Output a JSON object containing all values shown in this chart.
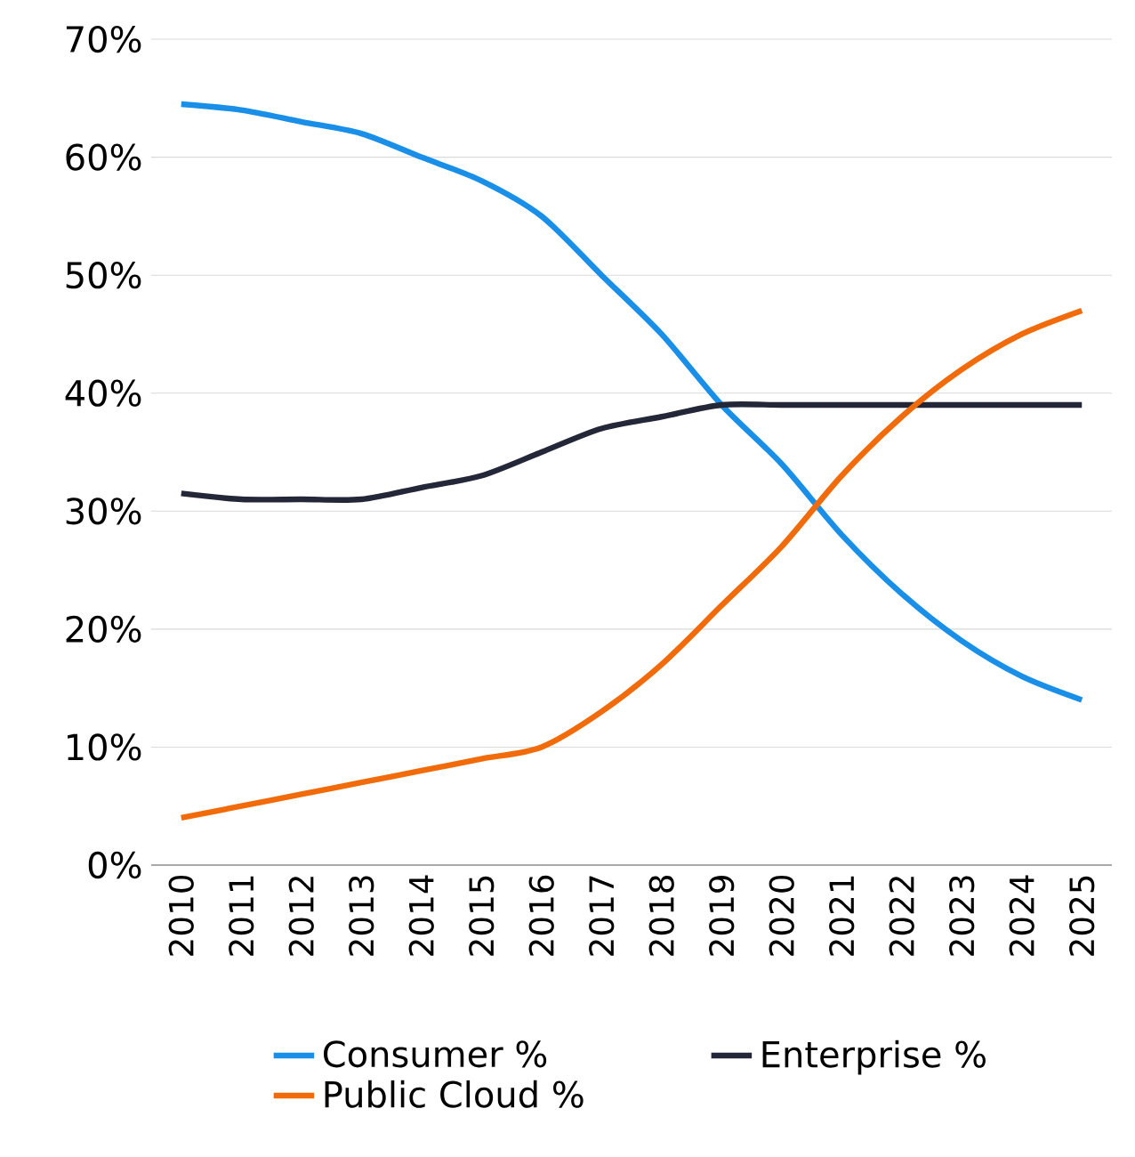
{
  "chart_data": {
    "type": "line",
    "categories": [
      "2010",
      "2011",
      "2012",
      "2013",
      "2014",
      "2015",
      "2016",
      "2017",
      "2018",
      "2019",
      "2020",
      "2021",
      "2022",
      "2023",
      "2024",
      "2025"
    ],
    "series": [
      {
        "name": "Consumer %",
        "color": "#1a8fe8",
        "values": [
          64.5,
          64,
          63,
          62,
          60,
          58,
          55,
          50,
          45,
          39,
          34,
          28,
          23,
          19,
          16,
          14
        ]
      },
      {
        "name": "Enterprise %",
        "color": "#232738",
        "values": [
          31.5,
          31,
          31,
          31,
          32,
          33,
          35,
          37,
          38,
          39,
          39,
          39,
          39,
          39,
          39,
          39
        ]
      },
      {
        "name": "Public Cloud %",
        "color": "#f26b0a",
        "values": [
          4,
          5,
          6,
          7,
          8,
          9,
          10,
          13,
          17,
          22,
          27,
          33,
          38,
          42,
          45,
          47
        ]
      }
    ],
    "ylim": [
      0,
      70
    ],
    "yticks": [
      {
        "value": 0,
        "label": "0%"
      },
      {
        "value": 10,
        "label": "10%"
      },
      {
        "value": 20,
        "label": "20%"
      },
      {
        "value": 30,
        "label": "30%"
      },
      {
        "value": 40,
        "label": "40%"
      },
      {
        "value": 50,
        "label": "50%"
      },
      {
        "value": 60,
        "label": "60%"
      },
      {
        "value": 70,
        "label": "70%"
      }
    ],
    "grid": "y",
    "legend": "bottom",
    "marker": "none",
    "line_style": "solid"
  }
}
